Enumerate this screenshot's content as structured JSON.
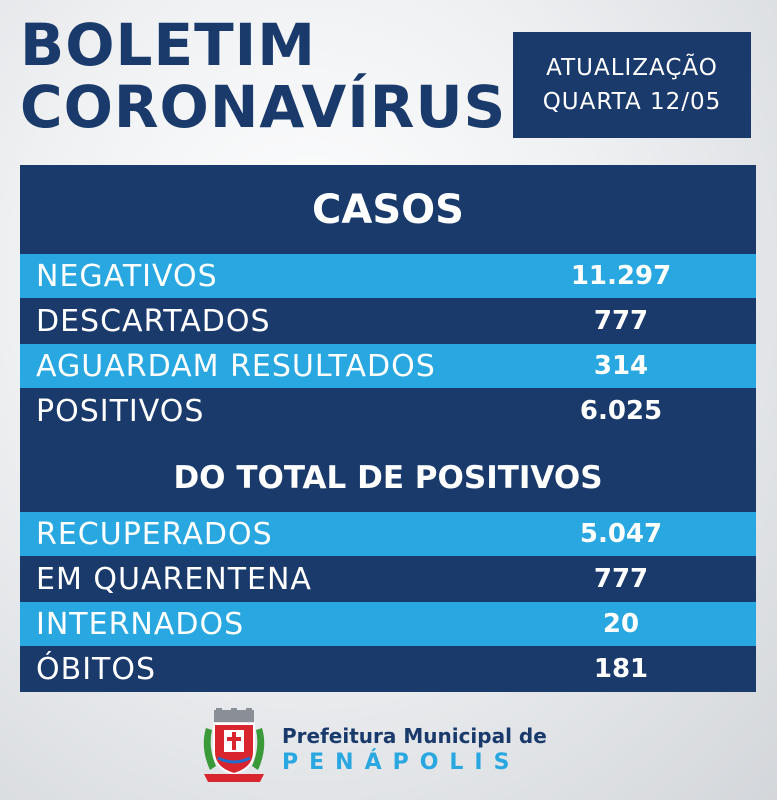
{
  "header": {
    "title_line1": "BOLETIM",
    "title_line2": "CORONAVÍRUS",
    "update_line1": "ATUALIZAÇÃO",
    "update_line2": "QUARTA 12/05"
  },
  "casos": {
    "title": "CASOS",
    "rows": [
      {
        "label": "NEGATIVOS",
        "value": "11.297"
      },
      {
        "label": "DESCARTADOS",
        "value": "777"
      },
      {
        "label": "AGUARDAM RESULTADOS",
        "value": "314"
      },
      {
        "label": "POSITIVOS",
        "value": "6.025"
      }
    ]
  },
  "positivos": {
    "title": "DO TOTAL DE POSITIVOS",
    "rows": [
      {
        "label": "RECUPERADOS",
        "value": "5.047"
      },
      {
        "label": "EM QUARENTENA",
        "value": "777"
      },
      {
        "label": "INTERNADOS",
        "value": "20"
      },
      {
        "label": "ÓBITOS",
        "value": "181"
      }
    ]
  },
  "footer": {
    "line1": "Prefeitura Municipal de",
    "line2": "PENÁPOLIS",
    "crest_icon": "municipal-crest-icon"
  },
  "colors": {
    "navy": "#1a3a6c",
    "light_blue": "#29a7e0",
    "white": "#ffffff"
  }
}
